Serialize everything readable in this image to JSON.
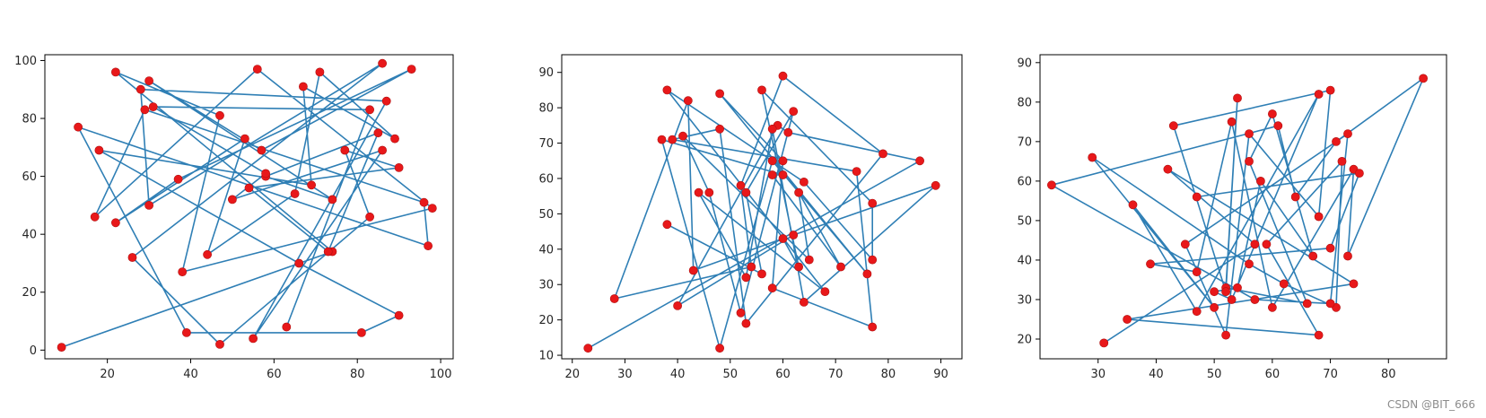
{
  "watermark": "CSDN @BIT_666",
  "style": {
    "line_color": "#2f7fb5",
    "point_color": "#e8181a",
    "axis_color": "#000000"
  },
  "chart_data": [
    {
      "type": "line",
      "markers": "scatter",
      "xlim": [
        5,
        103
      ],
      "ylim": [
        -3,
        102
      ],
      "xticks": [
        20,
        40,
        60,
        80,
        100
      ],
      "yticks": [
        0,
        20,
        40,
        60,
        80,
        100
      ],
      "x": [
        9,
        74,
        22,
        47,
        38,
        98,
        56,
        17,
        29,
        96,
        97,
        13,
        39,
        81,
        90,
        66,
        18,
        69,
        67,
        89,
        71,
        65,
        44,
        53,
        22,
        37,
        93,
        57,
        30,
        74,
        58,
        85,
        73,
        54,
        90,
        77,
        83,
        47,
        26,
        86,
        30,
        28,
        87,
        55,
        86,
        50,
        58,
        31,
        83,
        63
      ],
      "y": [
        1,
        34,
        96,
        81,
        27,
        49,
        97,
        46,
        83,
        51,
        36,
        77,
        6,
        6,
        12,
        30,
        69,
        57,
        91,
        73,
        96,
        54,
        33,
        73,
        44,
        59,
        97,
        69,
        93,
        52,
        60,
        75,
        34,
        56,
        63,
        69,
        46,
        2,
        32,
        99,
        50,
        90,
        86,
        4,
        69,
        52,
        61,
        84,
        83,
        8
      ]
    },
    {
      "type": "line",
      "markers": "scatter",
      "xlim": [
        18,
        94
      ],
      "ylim": [
        9,
        95
      ],
      "xticks": [
        20,
        30,
        40,
        50,
        60,
        70,
        80,
        90
      ],
      "yticks": [
        10,
        20,
        30,
        40,
        50,
        60,
        70,
        80,
        90
      ],
      "x": [
        23,
        86,
        61,
        59,
        40,
        62,
        89,
        64,
        58,
        53,
        44,
        68,
        38,
        64,
        77,
        77,
        56,
        63,
        60,
        43,
        42,
        28,
        54,
        52,
        60,
        79,
        53,
        48,
        39,
        74,
        77,
        58,
        60,
        48,
        76,
        58,
        48,
        37,
        60,
        58,
        71,
        63,
        65,
        41,
        46,
        52,
        62,
        53,
        56,
        38
      ],
      "y": [
        12,
        65,
        73,
        75,
        24,
        44,
        58,
        25,
        74,
        32,
        56,
        28,
        85,
        59,
        37,
        53,
        85,
        35,
        43,
        34,
        82,
        26,
        35,
        58,
        89,
        67,
        19,
        74,
        71,
        62,
        18,
        29,
        65,
        84,
        33,
        65,
        12,
        71,
        61,
        61,
        35,
        56,
        37,
        72,
        56,
        22,
        79,
        56,
        33,
        47
      ]
    },
    {
      "type": "line",
      "markers": "scatter",
      "xlim": [
        20,
        90
      ],
      "ylim": [
        15,
        92
      ],
      "xticks": [
        30,
        40,
        50,
        60,
        70,
        80
      ],
      "yticks": [
        20,
        30,
        40,
        50,
        60,
        70,
        80,
        90
      ],
      "x": [
        31,
        57,
        42,
        74,
        35,
        68,
        59,
        72,
        71,
        62,
        56,
        29,
        50,
        36,
        47,
        68,
        53,
        50,
        54,
        58,
        67,
        60,
        56,
        66,
        52,
        54,
        52,
        43,
        70,
        68,
        56,
        52,
        45,
        73,
        70,
        57,
        22,
        61,
        64,
        71,
        86,
        73,
        74,
        60,
        53,
        47,
        39,
        70,
        75,
        47
      ],
      "y": [
        19,
        44,
        63,
        34,
        25,
        21,
        44,
        65,
        28,
        34,
        39,
        66,
        28,
        54,
        27,
        82,
        30,
        32,
        33,
        60,
        41,
        77,
        65,
        29,
        33,
        81,
        32,
        74,
        83,
        51,
        72,
        21,
        44,
        72,
        29,
        30,
        59,
        74,
        56,
        70,
        86,
        41,
        63,
        28,
        75,
        37,
        39,
        43,
        62,
        56
      ]
    }
  ]
}
